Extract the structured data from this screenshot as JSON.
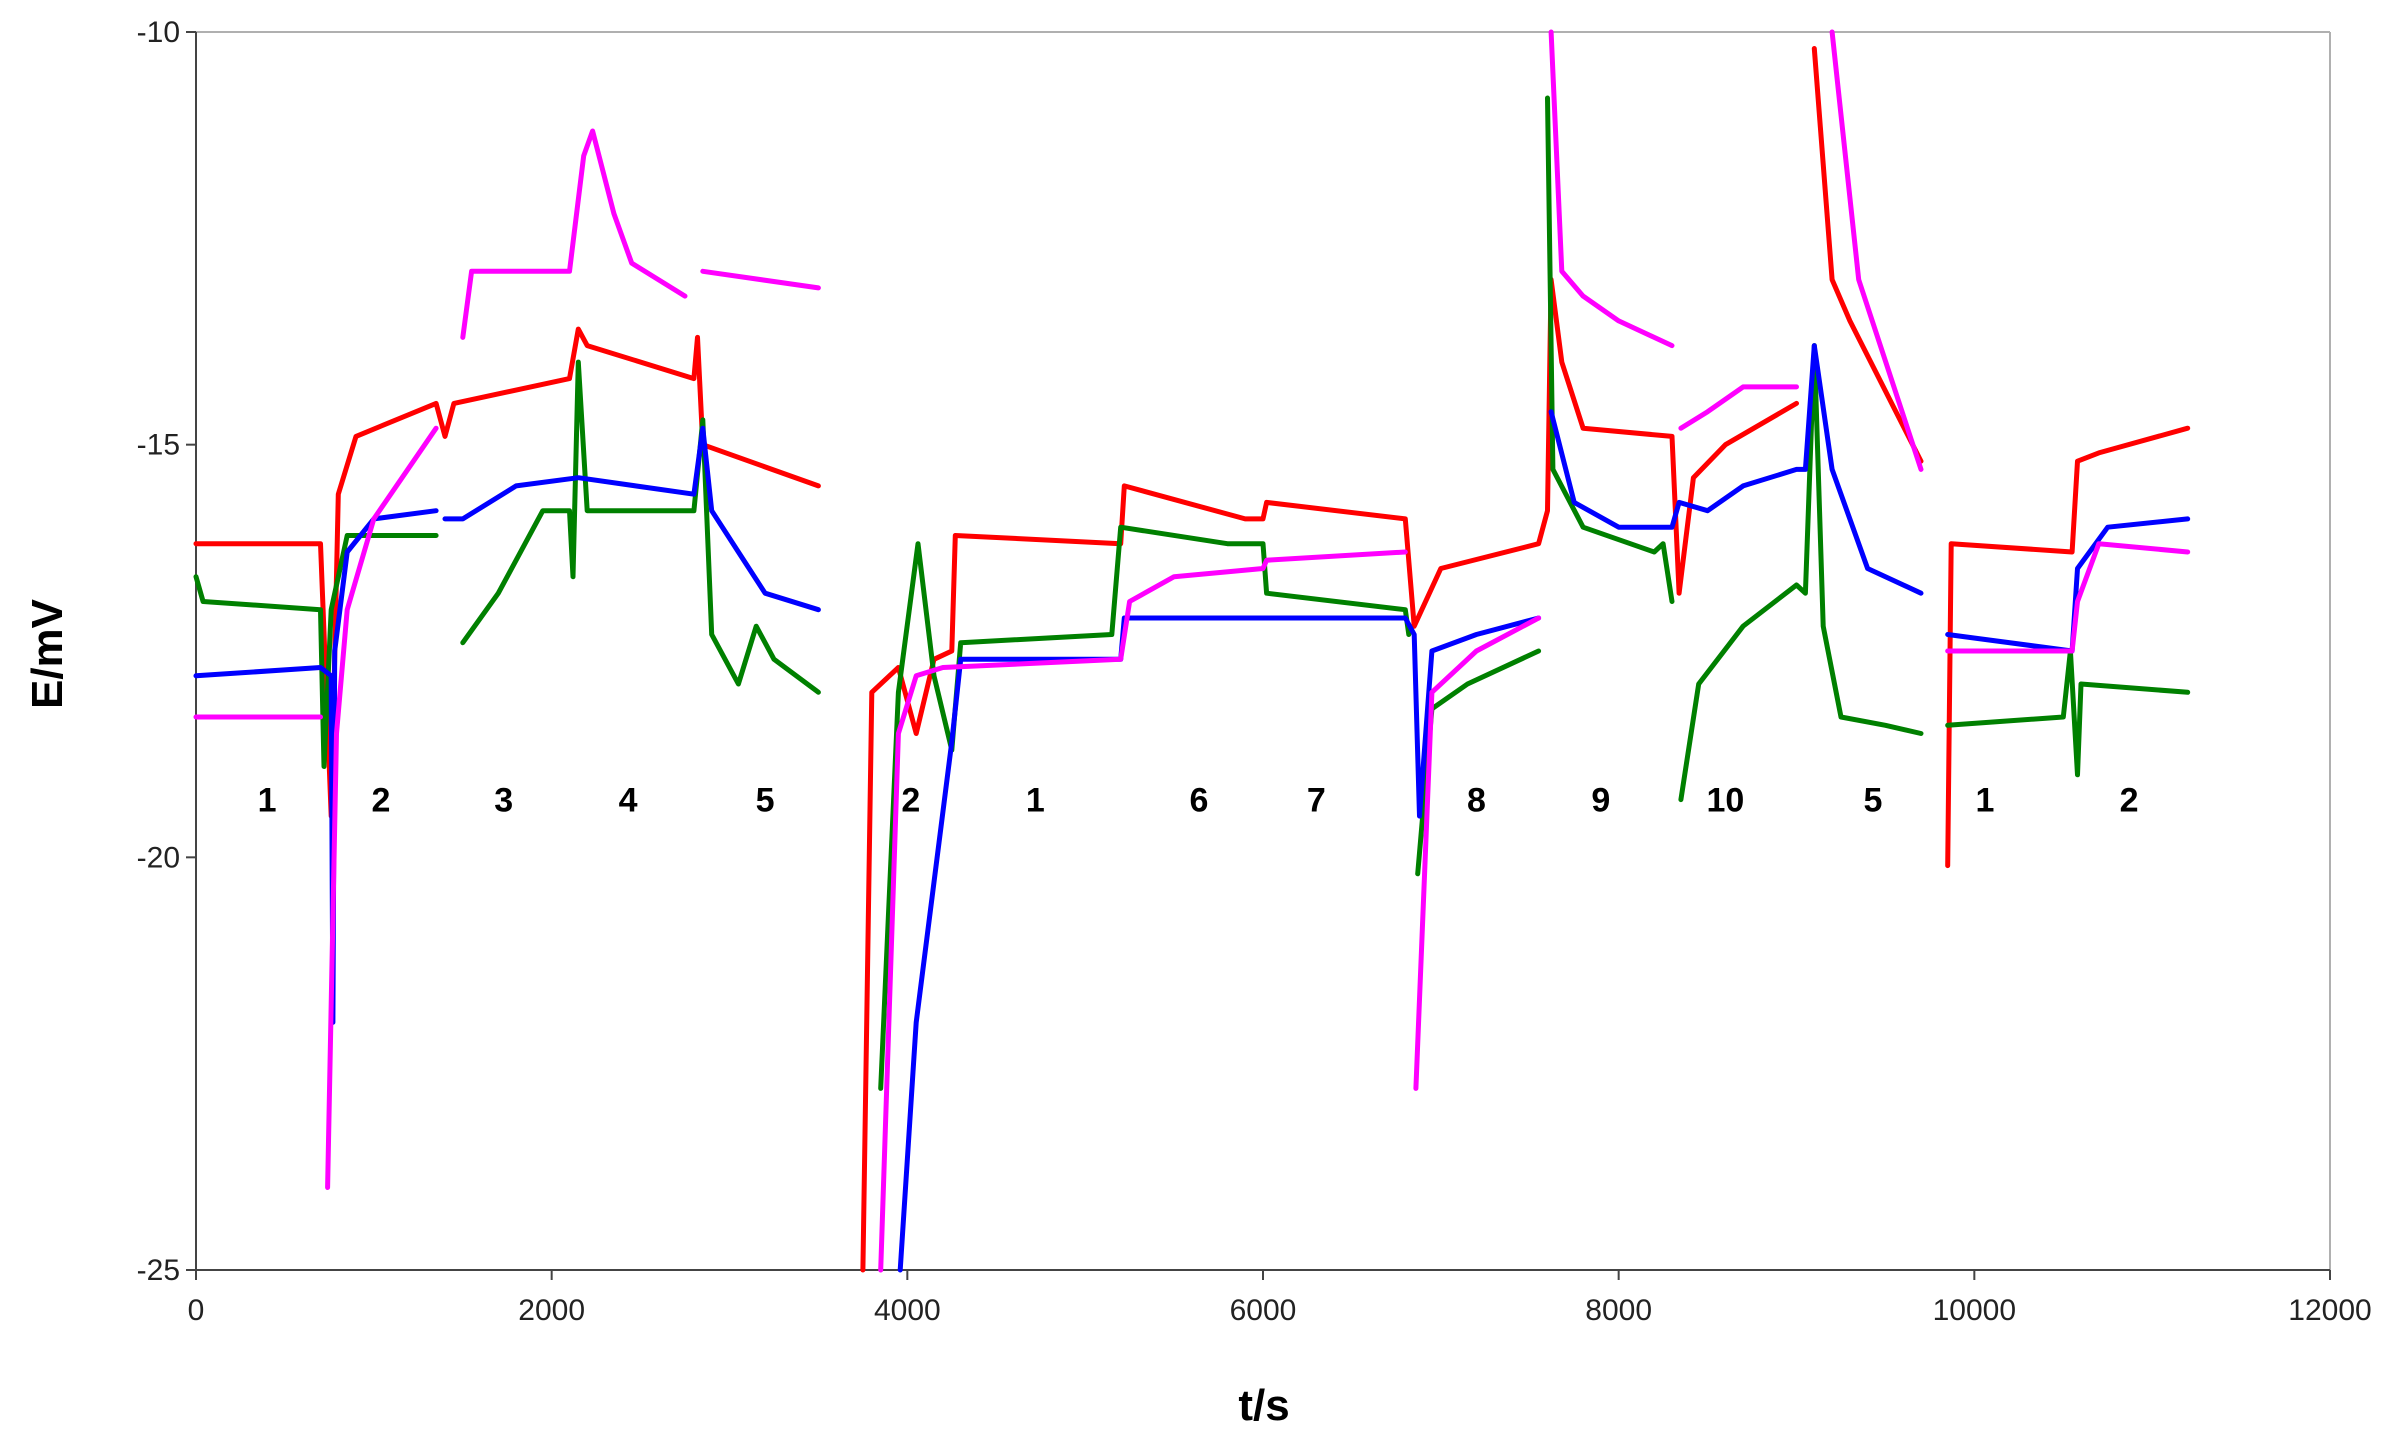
{
  "chart_data": {
    "type": "line",
    "xlabel": "t/s",
    "ylabel": "E/mV",
    "xlim": [
      0,
      12000
    ],
    "ylim": [
      -25,
      -10
    ],
    "xticks": [
      0,
      2000,
      4000,
      6000,
      8000,
      10000,
      12000
    ],
    "yticks": [
      -25,
      -20,
      -15,
      -10
    ],
    "grid": false,
    "legend": "none",
    "segment_labels": [
      {
        "text": "1",
        "t": 400
      },
      {
        "text": "2",
        "t": 1040
      },
      {
        "text": "3",
        "t": 1730
      },
      {
        "text": "4",
        "t": 2430
      },
      {
        "text": "5",
        "t": 3200
      },
      {
        "text": "2",
        "t": 4020
      },
      {
        "text": "1",
        "t": 4720
      },
      {
        "text": "6",
        "t": 5640
      },
      {
        "text": "7",
        "t": 6300
      },
      {
        "text": "8",
        "t": 7200
      },
      {
        "text": "9",
        "t": 7900
      },
      {
        "text": "10",
        "t": 8600
      },
      {
        "text": "5",
        "t": 9430
      },
      {
        "text": "1",
        "t": 10060
      },
      {
        "text": "2",
        "t": 10870
      }
    ],
    "series": [
      {
        "color": "#ff0000",
        "points": [
          [
            0,
            -16.2
          ],
          [
            700,
            -16.2
          ],
          [
            760,
            -19.5
          ],
          [
            800,
            -15.6
          ],
          [
            900,
            -14.9
          ],
          [
            1350,
            -14.5
          ],
          [
            1400,
            -14.9
          ],
          [
            1450,
            -14.5
          ],
          [
            2100,
            -14.2
          ],
          [
            2150,
            -13.6
          ],
          [
            2200,
            -13.8
          ],
          [
            2800,
            -14.2
          ],
          [
            2820,
            -13.7
          ],
          [
            2850,
            -15.0
          ],
          [
            3500,
            -15.5
          ],
          [
            null,
            null
          ],
          [
            3750,
            -25.0
          ],
          [
            3800,
            -18.0
          ],
          [
            3950,
            -17.7
          ],
          [
            4050,
            -18.5
          ],
          [
            4150,
            -17.6
          ],
          [
            4250,
            -17.5
          ],
          [
            4270,
            -16.1
          ],
          [
            5200,
            -16.2
          ],
          [
            5220,
            -15.5
          ],
          [
            5900,
            -15.9
          ],
          [
            6000,
            -15.9
          ],
          [
            6020,
            -15.7
          ],
          [
            6800,
            -15.9
          ],
          [
            6850,
            -17.2
          ],
          [
            7000,
            -16.5
          ],
          [
            7550,
            -16.2
          ],
          [
            7600,
            -15.8
          ],
          [
            7620,
            -13.0
          ],
          [
            7680,
            -14.0
          ],
          [
            7800,
            -14.8
          ],
          [
            8300,
            -14.9
          ],
          [
            8340,
            -16.8
          ],
          [
            8420,
            -15.4
          ],
          [
            8600,
            -15.0
          ],
          [
            9000,
            -14.5
          ],
          [
            null,
            null
          ],
          [
            9100,
            -10.2
          ],
          [
            9200,
            -13.0
          ],
          [
            9300,
            -13.5
          ],
          [
            9700,
            -15.2
          ],
          [
            null,
            null
          ],
          [
            9850,
            -20.1
          ],
          [
            9870,
            -16.2
          ],
          [
            10550,
            -16.3
          ],
          [
            10580,
            -15.2
          ],
          [
            10700,
            -15.1
          ],
          [
            11200,
            -14.8
          ]
        ]
      },
      {
        "color": "#008000",
        "points": [
          [
            0,
            -16.6
          ],
          [
            40,
            -16.9
          ],
          [
            700,
            -17.0
          ],
          [
            720,
            -18.9
          ],
          [
            760,
            -17.0
          ],
          [
            850,
            -16.1
          ],
          [
            1350,
            -16.1
          ],
          [
            null,
            null
          ],
          [
            1500,
            -17.4
          ],
          [
            1700,
            -16.8
          ],
          [
            1950,
            -15.8
          ],
          [
            2100,
            -15.8
          ],
          [
            2120,
            -16.6
          ],
          [
            2150,
            -14.0
          ],
          [
            2200,
            -15.8
          ],
          [
            2800,
            -15.8
          ],
          [
            2850,
            -14.7
          ],
          [
            2900,
            -17.3
          ],
          [
            3050,
            -17.9
          ],
          [
            3150,
            -17.2
          ],
          [
            3250,
            -17.6
          ],
          [
            3500,
            -18.0
          ],
          [
            null,
            null
          ],
          [
            3850,
            -22.8
          ],
          [
            3950,
            -18.0
          ],
          [
            4060,
            -16.2
          ],
          [
            4150,
            -17.8
          ],
          [
            4250,
            -18.7
          ],
          [
            4300,
            -17.4
          ],
          [
            5150,
            -17.3
          ],
          [
            5200,
            -16.0
          ],
          [
            5800,
            -16.2
          ],
          [
            6000,
            -16.2
          ],
          [
            6020,
            -16.8
          ],
          [
            6800,
            -17.0
          ],
          [
            6820,
            -17.3
          ],
          [
            null,
            null
          ],
          [
            6870,
            -20.2
          ],
          [
            6950,
            -18.2
          ],
          [
            7150,
            -17.9
          ],
          [
            7550,
            -17.5
          ],
          [
            null,
            null
          ],
          [
            7600,
            -10.8
          ],
          [
            7630,
            -15.3
          ],
          [
            7800,
            -16.0
          ],
          [
            8200,
            -16.3
          ],
          [
            8250,
            -16.2
          ],
          [
            8300,
            -16.9
          ],
          [
            null,
            null
          ],
          [
            8350,
            -19.3
          ],
          [
            8450,
            -17.9
          ],
          [
            8700,
            -17.2
          ],
          [
            9000,
            -16.7
          ],
          [
            9050,
            -16.8
          ],
          [
            9100,
            -13.8
          ],
          [
            9150,
            -17.2
          ],
          [
            9250,
            -18.3
          ],
          [
            9500,
            -18.4
          ],
          [
            9700,
            -18.5
          ],
          [
            null,
            null
          ],
          [
            9850,
            -18.4
          ],
          [
            10500,
            -18.3
          ],
          [
            10540,
            -17.5
          ],
          [
            10580,
            -19.0
          ],
          [
            10600,
            -17.9
          ],
          [
            11200,
            -18.0
          ]
        ]
      },
      {
        "color": "#0000ff",
        "points": [
          [
            0,
            -17.8
          ],
          [
            700,
            -17.7
          ],
          [
            760,
            -17.8
          ],
          [
            770,
            -22.0
          ],
          [
            780,
            -17.5
          ],
          [
            850,
            -16.3
          ],
          [
            1000,
            -15.9
          ],
          [
            1350,
            -15.8
          ],
          [
            null,
            null
          ],
          [
            1400,
            -15.9
          ],
          [
            1500,
            -15.9
          ],
          [
            1800,
            -15.5
          ],
          [
            2150,
            -15.4
          ],
          [
            2800,
            -15.6
          ],
          [
            2850,
            -14.8
          ],
          [
            2900,
            -15.8
          ],
          [
            3050,
            -16.3
          ],
          [
            3200,
            -16.8
          ],
          [
            3500,
            -17.0
          ],
          [
            null,
            null
          ],
          [
            3960,
            -25.0
          ],
          [
            4050,
            -22.0
          ],
          [
            4250,
            -18.6
          ],
          [
            4300,
            -17.6
          ],
          [
            5200,
            -17.6
          ],
          [
            5220,
            -17.1
          ],
          [
            6800,
            -17.1
          ],
          [
            6850,
            -17.3
          ],
          [
            6880,
            -19.5
          ],
          [
            6950,
            -17.5
          ],
          [
            7200,
            -17.3
          ],
          [
            7550,
            -17.1
          ],
          [
            null,
            null
          ],
          [
            7620,
            -14.6
          ],
          [
            7750,
            -15.7
          ],
          [
            8000,
            -16.0
          ],
          [
            8300,
            -16.0
          ],
          [
            8340,
            -15.7
          ],
          [
            8500,
            -15.8
          ],
          [
            8700,
            -15.5
          ],
          [
            9000,
            -15.3
          ],
          [
            9050,
            -15.3
          ],
          [
            9100,
            -13.8
          ],
          [
            9200,
            -15.3
          ],
          [
            9400,
            -16.5
          ],
          [
            9700,
            -16.8
          ],
          [
            null,
            null
          ],
          [
            9850,
            -17.3
          ],
          [
            10550,
            -17.5
          ],
          [
            10580,
            -16.5
          ],
          [
            10750,
            -16.0
          ],
          [
            11200,
            -15.9
          ]
        ]
      },
      {
        "color": "#ff00ff",
        "points": [
          [
            0,
            -18.3
          ],
          [
            700,
            -18.3
          ],
          [
            null,
            null
          ],
          [
            740,
            -24.0
          ],
          [
            790,
            -18.5
          ],
          [
            850,
            -17.0
          ],
          [
            1000,
            -15.9
          ],
          [
            1350,
            -14.8
          ],
          [
            null,
            null
          ],
          [
            1500,
            -13.7
          ],
          [
            1550,
            -12.9
          ],
          [
            2100,
            -12.9
          ],
          [
            2180,
            -11.5
          ],
          [
            2230,
            -11.2
          ],
          [
            2350,
            -12.2
          ],
          [
            2450,
            -12.8
          ],
          [
            2750,
            -13.2
          ],
          [
            null,
            null
          ],
          [
            2850,
            -12.9
          ],
          [
            3500,
            -13.1
          ],
          [
            null,
            null
          ],
          [
            3850,
            -25.0
          ],
          [
            3950,
            -18.5
          ],
          [
            4050,
            -17.8
          ],
          [
            4200,
            -17.7
          ],
          [
            5200,
            -17.6
          ],
          [
            5250,
            -16.9
          ],
          [
            5500,
            -16.6
          ],
          [
            6000,
            -16.5
          ],
          [
            6020,
            -16.4
          ],
          [
            6800,
            -16.3
          ],
          [
            null,
            null
          ],
          [
            6860,
            -22.8
          ],
          [
            6950,
            -18.0
          ],
          [
            7200,
            -17.5
          ],
          [
            7550,
            -17.1
          ],
          [
            null,
            null
          ],
          [
            7620,
            -9.9
          ],
          [
            7680,
            -12.9
          ],
          [
            7800,
            -13.2
          ],
          [
            8000,
            -13.5
          ],
          [
            8300,
            -13.8
          ],
          [
            null,
            null
          ],
          [
            8350,
            -14.8
          ],
          [
            8500,
            -14.6
          ],
          [
            8700,
            -14.3
          ],
          [
            9000,
            -14.3
          ],
          [
            null,
            null
          ],
          [
            9200,
            -10.0
          ],
          [
            9350,
            -13.0
          ],
          [
            9700,
            -15.3
          ],
          [
            null,
            null
          ],
          [
            9850,
            -17.5
          ],
          [
            10550,
            -17.5
          ],
          [
            10580,
            -16.9
          ],
          [
            10700,
            -16.2
          ],
          [
            11200,
            -16.3
          ]
        ]
      }
    ]
  }
}
